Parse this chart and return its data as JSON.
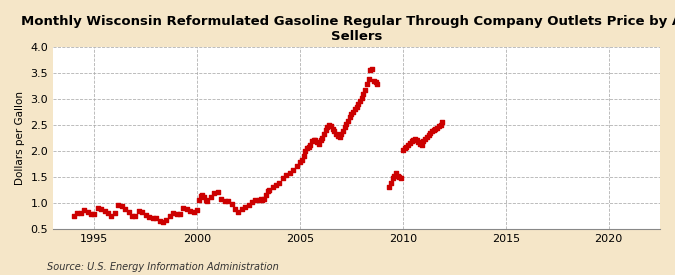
{
  "title": "Monthly Wisconsin Reformulated Gasoline Regular Through Company Outlets Price by All\nSellers",
  "ylabel": "Dollars per Gallon",
  "source_text": "Source: U.S. Energy Information Administration",
  "background_color": "#f5e6c8",
  "plot_background_color": "#ffffff",
  "marker_color": "#cc0000",
  "marker": "s",
  "marker_size": 2.5,
  "xlim": [
    1993.0,
    2022.5
  ],
  "ylim": [
    0.5,
    4.0
  ],
  "xticks": [
    1995,
    2000,
    2005,
    2010,
    2015,
    2020
  ],
  "yticks": [
    0.5,
    1.0,
    1.5,
    2.0,
    2.5,
    3.0,
    3.5,
    4.0
  ],
  "grid_color": "#aaaaaa",
  "grid_style": "--",
  "title_fontsize": 9.5,
  "label_fontsize": 7.5,
  "tick_fontsize": 8,
  "source_fontsize": 7,
  "data_x": [
    1994.0,
    1994.17,
    1994.33,
    1994.5,
    1994.67,
    1994.83,
    1995.0,
    1995.17,
    1995.33,
    1995.5,
    1995.67,
    1995.83,
    1996.0,
    1996.17,
    1996.33,
    1996.5,
    1996.67,
    1996.83,
    1997.0,
    1997.17,
    1997.33,
    1997.5,
    1997.67,
    1997.83,
    1998.0,
    1998.17,
    1998.33,
    1998.5,
    1998.67,
    1998.83,
    1999.0,
    1999.17,
    1999.33,
    1999.5,
    1999.67,
    1999.83,
    2000.0,
    2000.08,
    2000.17,
    2000.25,
    2000.33,
    2000.42,
    2000.5,
    2000.67,
    2000.83,
    2001.0,
    2001.17,
    2001.33,
    2001.5,
    2001.67,
    2001.83,
    2002.0,
    2002.17,
    2002.33,
    2002.5,
    2002.67,
    2002.83,
    2003.0,
    2003.08,
    2003.17,
    2003.25,
    2003.33,
    2003.42,
    2003.5,
    2003.67,
    2003.83,
    2004.0,
    2004.17,
    2004.33,
    2004.5,
    2004.67,
    2004.83,
    2005.0,
    2005.08,
    2005.17,
    2005.25,
    2005.33,
    2005.42,
    2005.5,
    2005.58,
    2005.67,
    2005.75,
    2005.83,
    2005.92,
    2006.0,
    2006.08,
    2006.17,
    2006.25,
    2006.33,
    2006.42,
    2006.5,
    2006.58,
    2006.67,
    2006.75,
    2006.83,
    2006.92,
    2007.0,
    2007.08,
    2007.17,
    2007.25,
    2007.33,
    2007.42,
    2007.5,
    2007.58,
    2007.67,
    2007.75,
    2007.83,
    2007.92,
    2008.0,
    2008.08,
    2008.17,
    2008.25,
    2008.33,
    2008.42,
    2008.5,
    2008.58,
    2008.67,
    2008.75,
    2009.33,
    2009.42,
    2009.5,
    2009.58,
    2009.67,
    2009.75,
    2009.83,
    2009.92,
    2010.0,
    2010.08,
    2010.17,
    2010.25,
    2010.33,
    2010.42,
    2010.5,
    2010.58,
    2010.67,
    2010.75,
    2010.83,
    2010.92,
    2011.0,
    2011.08,
    2011.17,
    2011.25,
    2011.33,
    2011.42,
    2011.5,
    2011.58,
    2011.67,
    2011.75,
    2011.83,
    2011.92
  ],
  "data_y": [
    0.75,
    0.8,
    0.8,
    0.85,
    0.83,
    0.78,
    0.78,
    0.9,
    0.88,
    0.84,
    0.8,
    0.75,
    0.8,
    0.95,
    0.93,
    0.87,
    0.82,
    0.75,
    0.75,
    0.84,
    0.82,
    0.76,
    0.72,
    0.7,
    0.7,
    0.64,
    0.62,
    0.67,
    0.75,
    0.8,
    0.78,
    0.78,
    0.9,
    0.88,
    0.84,
    0.82,
    0.85,
    1.05,
    1.12,
    1.15,
    1.1,
    1.06,
    1.04,
    1.1,
    1.18,
    1.2,
    1.08,
    1.04,
    1.04,
    0.98,
    0.88,
    0.82,
    0.88,
    0.92,
    0.95,
    1.02,
    1.05,
    1.05,
    1.08,
    1.05,
    1.08,
    1.15,
    1.22,
    1.25,
    1.3,
    1.35,
    1.38,
    1.47,
    1.53,
    1.58,
    1.63,
    1.7,
    1.78,
    1.82,
    1.9,
    2.0,
    2.05,
    2.08,
    2.12,
    2.18,
    2.2,
    2.2,
    2.16,
    2.14,
    2.2,
    2.25,
    2.32,
    2.4,
    2.45,
    2.5,
    2.48,
    2.42,
    2.38,
    2.32,
    2.28,
    2.26,
    2.32,
    2.38,
    2.45,
    2.52,
    2.58,
    2.65,
    2.7,
    2.75,
    2.8,
    2.85,
    2.9,
    2.95,
    3.02,
    3.1,
    3.18,
    3.28,
    3.38,
    3.56,
    3.58,
    3.35,
    3.32,
    3.28,
    1.3,
    1.38,
    1.48,
    1.52,
    1.58,
    1.52,
    1.5,
    1.48,
    2.02,
    2.05,
    2.08,
    2.12,
    2.15,
    2.18,
    2.2,
    2.22,
    2.2,
    2.16,
    2.14,
    2.12,
    2.18,
    2.22,
    2.26,
    2.3,
    2.34,
    2.38,
    2.4,
    2.42,
    2.44,
    2.47,
    2.5,
    2.55
  ]
}
